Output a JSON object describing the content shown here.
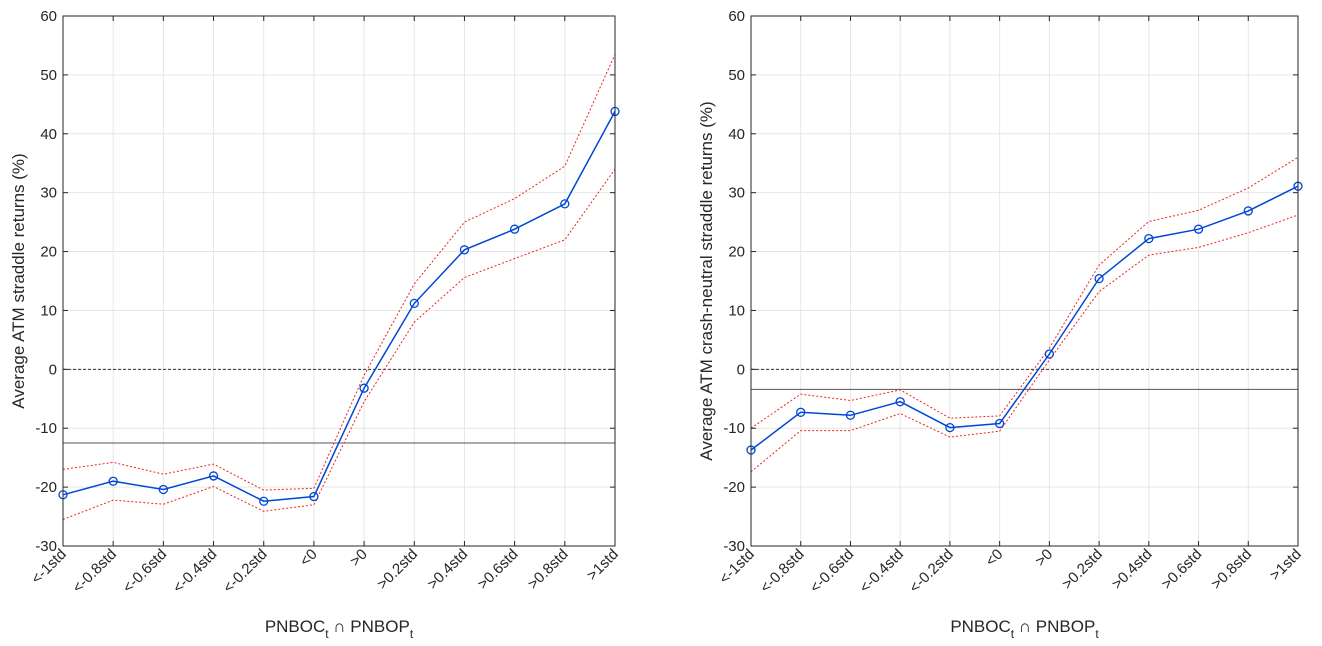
{
  "chart_data": [
    {
      "type": "line",
      "xlabel": {
        "main1": "PNBOC",
        "sub1": "t",
        "op": "∩",
        "main2": "PNBOP",
        "sub2": "t"
      },
      "ylabel": "Average ATM straddle returns (%)",
      "ylim": [
        -30,
        60
      ],
      "yticks": [
        -30,
        -20,
        -10,
        0,
        10,
        20,
        30,
        40,
        50,
        60
      ],
      "grid": true,
      "categories": [
        "<-1std",
        "<-0.8std",
        "<-0.6std",
        "<-0.4std",
        "<-0.2std",
        "<0",
        ">0",
        ">0.2std",
        ">0.4std",
        ">0.6std",
        ">0.8std",
        ">1std"
      ],
      "mean": [
        -21.3,
        -19.0,
        -20.4,
        -18.1,
        -22.4,
        -21.6,
        -3.2,
        11.2,
        20.3,
        23.8,
        28.1,
        43.8
      ],
      "upper": [
        -17.0,
        -15.8,
        -17.8,
        -16.1,
        -20.5,
        -20.2,
        -1.0,
        14.5,
        25.0,
        29.0,
        34.5,
        53.5
      ],
      "lower": [
        -25.5,
        -22.2,
        -22.9,
        -19.9,
        -24.1,
        -23.0,
        -5.5,
        8.0,
        15.6,
        18.8,
        22.0,
        34.0
      ],
      "hline_solid": -12.5,
      "hline_dashed": 0,
      "colors": {
        "mean": "#0047d6",
        "band": "#e8271c",
        "ref": "#555555",
        "zero": "#333333",
        "grid": "#e6e6e6",
        "axis": "#262626"
      }
    },
    {
      "type": "line",
      "xlabel": {
        "main1": "PNBOC",
        "sub1": "t",
        "op": "∩",
        "main2": "PNBOP",
        "sub2": "t"
      },
      "ylabel": "Average ATM crash-neutral straddle returns (%)",
      "ylim": [
        -30,
        60
      ],
      "yticks": [
        -30,
        -20,
        -10,
        0,
        10,
        20,
        30,
        40,
        50,
        60
      ],
      "grid": true,
      "categories": [
        "<-1std",
        "<-0.8std",
        "<-0.6std",
        "<-0.4std",
        "<-0.2std",
        "<0",
        ">0",
        ">0.2std",
        ">0.4std",
        ">0.6std",
        ">0.8std",
        ">1std"
      ],
      "mean": [
        -13.7,
        -7.3,
        -7.8,
        -5.5,
        -9.9,
        -9.2,
        2.6,
        15.4,
        22.2,
        23.8,
        26.9,
        31.1
      ],
      "upper": [
        -10.0,
        -4.2,
        -5.3,
        -3.5,
        -8.3,
        -7.9,
        3.6,
        17.7,
        25.1,
        27.0,
        30.8,
        36.0
      ],
      "lower": [
        -17.4,
        -10.4,
        -10.4,
        -7.5,
        -11.5,
        -10.5,
        1.6,
        13.2,
        19.4,
        20.7,
        23.2,
        26.2
      ],
      "hline_solid": -3.4,
      "hline_dashed": 0,
      "colors": {
        "mean": "#0047d6",
        "band": "#e8271c",
        "ref": "#555555",
        "zero": "#333333",
        "grid": "#e6e6e6",
        "axis": "#262626"
      }
    }
  ]
}
